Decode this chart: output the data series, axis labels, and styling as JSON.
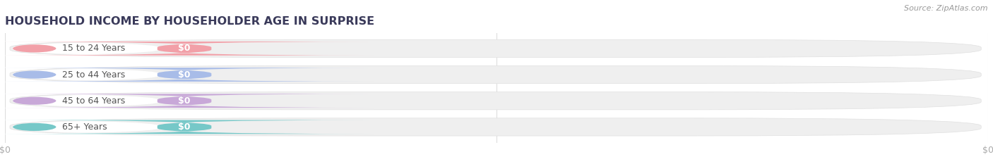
{
  "title": "HOUSEHOLD INCOME BY HOUSEHOLDER AGE IN SURPRISE",
  "source": "Source: ZipAtlas.com",
  "categories": [
    "15 to 24 Years",
    "25 to 44 Years",
    "45 to 64 Years",
    "65+ Years"
  ],
  "values": [
    0,
    0,
    0,
    0
  ],
  "bar_colors": [
    "#f2a0a8",
    "#a8bce8",
    "#c8a8d8",
    "#76c8c8"
  ],
  "label_text": [
    "$0",
    "$0",
    "$0",
    "$0"
  ],
  "background_color": "#ffffff",
  "bar_bg_color": "#efefef",
  "bar_bg_border_color": "#e0e0e0",
  "white_pill_color": "#ffffff",
  "title_color": "#3a3a5a",
  "source_color": "#999999",
  "label_text_color": "#555555",
  "value_text_color": "#ffffff",
  "tick_label_color": "#aaaaaa",
  "grid_color": "#dddddd",
  "xlim": [
    0,
    1
  ],
  "figsize": [
    14.06,
    2.33
  ],
  "dpi": 100
}
